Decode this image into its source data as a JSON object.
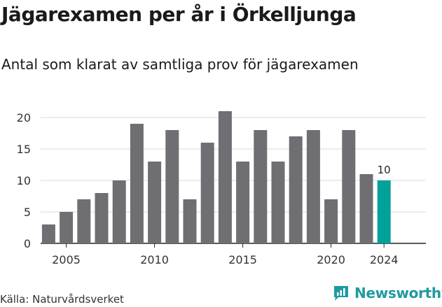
{
  "title": "Jägarexamen per år i Örkelljunga",
  "subtitle": "Antal som klarat av samtliga prov för jägarexamen",
  "source": "Källa: Naturvårdsverket",
  "brand": {
    "name": "Newsworthy",
    "icon": "newsworthy-logo-icon",
    "color": "#1f9aa0"
  },
  "chart_data": {
    "type": "bar",
    "title": "",
    "xlabel": "",
    "ylabel": "",
    "x": [
      2004,
      2005,
      2006,
      2007,
      2008,
      2009,
      2010,
      2011,
      2012,
      2013,
      2014,
      2015,
      2016,
      2017,
      2018,
      2019,
      2020,
      2021,
      2022,
      2023,
      2024
    ],
    "values": [
      3,
      5,
      7,
      8,
      10,
      19,
      13,
      18,
      7,
      16,
      21,
      13,
      18,
      13,
      17,
      18,
      7,
      18,
      11,
      10,
      null
    ],
    "ylim": [
      0,
      21
    ],
    "yticks": [
      0,
      5,
      10,
      15,
      20
    ],
    "xticks": [
      2005,
      2010,
      2015,
      2020,
      2024
    ],
    "grid": true,
    "bar_color": "#6e6e73",
    "highlight_color": "#00a19a",
    "highlight_label": "10"
  }
}
